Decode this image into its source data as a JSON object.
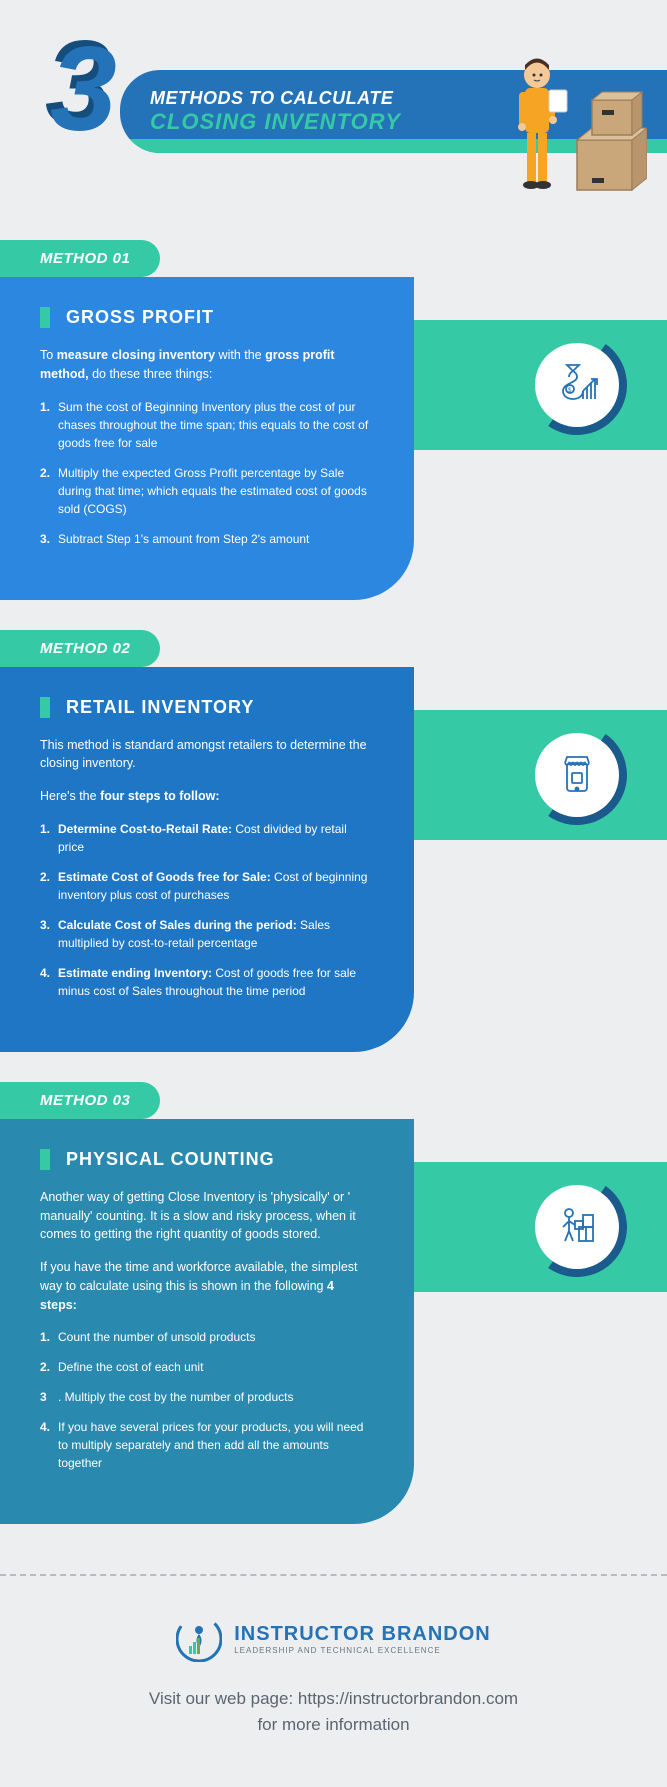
{
  "header": {
    "number": "3",
    "title_line1": "METHODS TO CALCULATE",
    "title_line2": "CLOSING INVENTORY"
  },
  "colors": {
    "page_bg": "#eceef0",
    "primary_blue": "#2472b8",
    "primary_blue_dark": "#154d7c",
    "teal": "#35c9a5",
    "method1_bg": "#2b87e0",
    "method2_bg": "#1f76c4",
    "method3_bg": "#2a89af",
    "arc_color": "#1a5a8c",
    "footer_text": "#5a6570"
  },
  "methods": [
    {
      "tab": "METHOD 01",
      "title": "GROSS PROFIT",
      "intro_html": "To <b>measure closing inventory</b> with the <b>gross profit method,</b> do these three things:",
      "icon_name": "money-growth-icon",
      "steps": [
        "Sum the cost of Beginning Inventory plus the cost of pur chases throughout the time span; this equals to the cost of goods free for sale",
        "Multiply the expected Gross Profit percentage by Sale during that time; which equals the estimated cost of goods sold (COGS)",
        "Subtract Step 1's amount from Step 2's amount"
      ]
    },
    {
      "tab": "METHOD 02",
      "title": "RETAIL INVENTORY",
      "intro_html": "This method is standard amongst retailers to determine the closing inventory.",
      "sub_intro_html": "Here's the <b>four steps to follow:</b>",
      "icon_name": "retail-store-icon",
      "steps_rich": [
        {
          "bold": "Determine Cost-to-Retail Rate:",
          "rest": " Cost divided by retail price"
        },
        {
          "bold": "Estimate Cost of Goods free for Sale:",
          "rest": " Cost of beginning inventory plus cost of purchases"
        },
        {
          "bold": "Calculate Cost of Sales during the period:",
          "rest": " Sales multiplied by cost-to-retail percentage"
        },
        {
          "bold": "Estimate ending Inventory:",
          "rest": " Cost of goods free for sale minus cost of Sales throughout the time period"
        }
      ]
    },
    {
      "tab": "METHOD 03",
      "title": "PHYSICAL COUNTING",
      "intro_html": "Another way of getting Close Inventory is 'physically' or ' manually' counting. It is a slow and risky process, when it comes to getting the right quantity of goods stored.",
      "sub_intro_html": "If you have the time and workforce available, the simplest way to calculate using this is shown in the following <b>4 steps:</b>",
      "icon_name": "worker-boxes-icon",
      "steps": [
        "Count the number of unsold products",
        "Define the cost of each unit",
        "Multiply the cost by the number of products",
        "If you have several prices for your products, you will need to multiply separately and then add all the amounts together"
      ]
    }
  ],
  "footer": {
    "brand": "INSTRUCTOR BRANDON",
    "tagline": "LEADERSHIP AND TECHNICAL EXCELLENCE",
    "cta_line1": "Visit our web page: https://instructorbrandon.com",
    "cta_line2": "for more information"
  }
}
